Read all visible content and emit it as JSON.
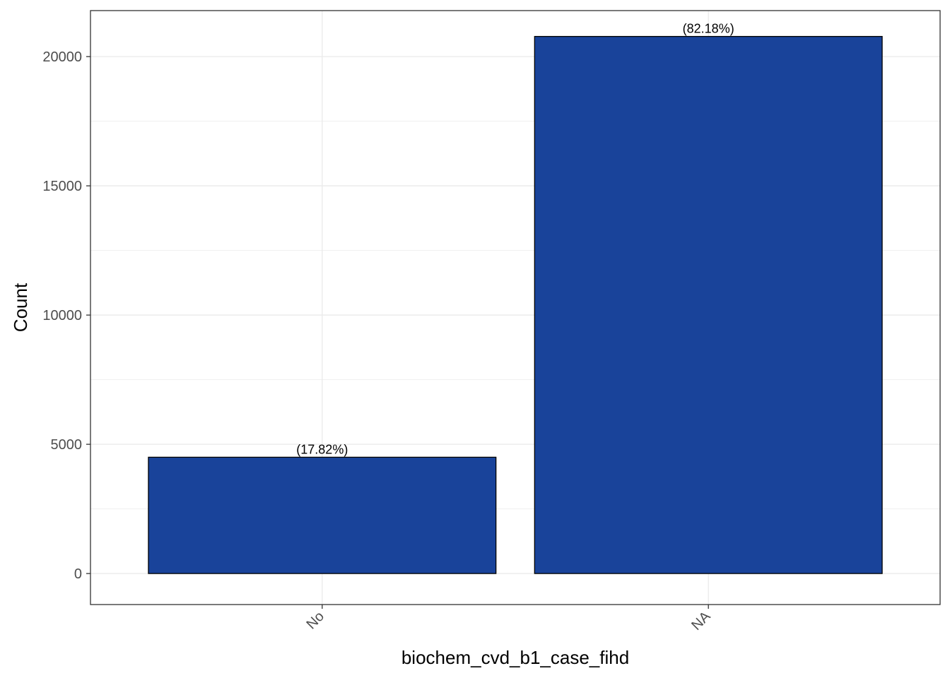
{
  "chart_data": {
    "type": "bar",
    "categories": [
      "No",
      "NA"
    ],
    "values": [
      4500,
      20780
    ],
    "bar_labels": [
      "(17.82%)",
      "(82.18%)"
    ],
    "xlabel": "biochem_cvd_b1_case_fihd",
    "ylabel": "Count",
    "ylim": [
      -1200,
      21780
    ],
    "yticks": [
      0,
      5000,
      10000,
      15000,
      20000
    ],
    "ytick_labels": [
      "0",
      "5000",
      "10000",
      "15000",
      "20000"
    ],
    "grid": true,
    "legend": "none",
    "colors": {
      "bar_fill": "#19439A",
      "bar_stroke": "#000000",
      "grid": "#EBEBEB",
      "panel_border": "#333333"
    }
  }
}
